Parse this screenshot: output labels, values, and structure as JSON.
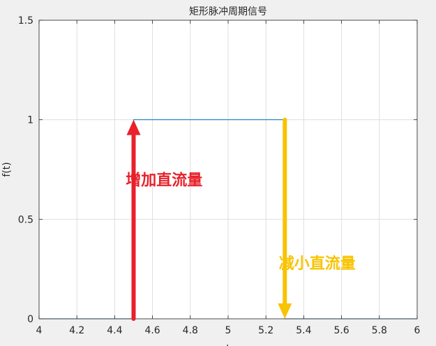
{
  "chart_data": {
    "type": "line",
    "title": "矩形脉冲周期信号",
    "xlabel": "t",
    "ylabel": "f(t)",
    "xlim": [
      4,
      6
    ],
    "ylim": [
      0,
      1.5
    ],
    "grid": true,
    "xticks": [
      4,
      4.2,
      4.4,
      4.6,
      4.8,
      5,
      5.2,
      5.4,
      5.6,
      5.8,
      6
    ],
    "xtick_labels": [
      "4",
      "4.2",
      "4.4",
      "4.6",
      "4.8",
      "5",
      "5.2",
      "5.4",
      "5.6",
      "5.8",
      "6"
    ],
    "yticks": [
      0,
      0.5,
      1,
      1.5
    ],
    "ytick_labels": [
      "0",
      "0.5",
      "1",
      "1.5"
    ],
    "series": [
      {
        "color": "#0072bd",
        "x": [
          4,
          4.5,
          4.5,
          5.3,
          5.3,
          6
        ],
        "y": [
          0,
          0,
          1,
          1,
          0,
          0
        ]
      }
    ],
    "annotations": [
      {
        "text": "增加直流量",
        "color": "#e8212b",
        "arrow": "up",
        "arrow_x": 4.5,
        "arrow_from": 0,
        "arrow_to": 1,
        "label_x": 4.68,
        "label_y": 0.7
      },
      {
        "text": "减小直流量",
        "color": "#f8c300",
        "arrow": "down",
        "arrow_x": 5.3,
        "arrow_from": 1,
        "arrow_to": 0,
        "label_x": 5.49,
        "label_y": 0.28
      }
    ]
  }
}
